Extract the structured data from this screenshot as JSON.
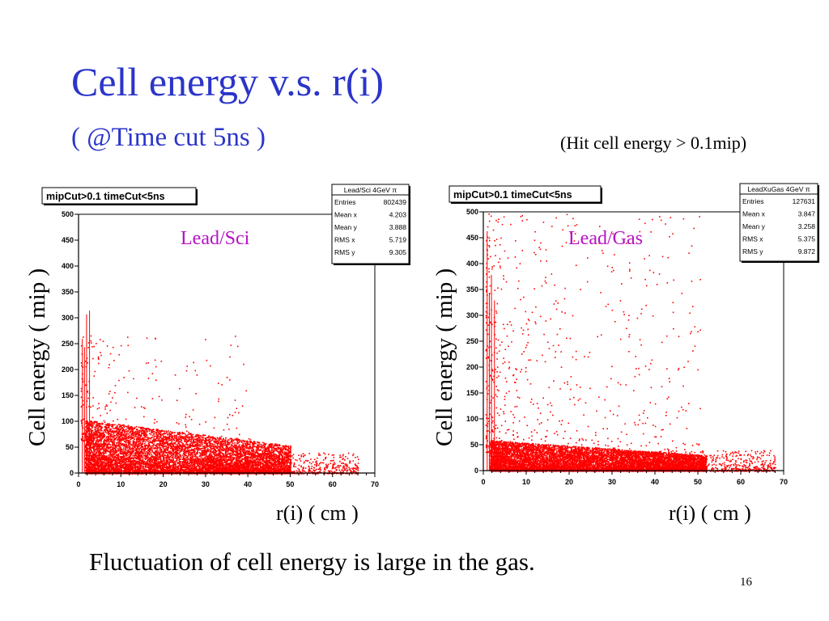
{
  "slide": {
    "title": "Cell energy v.s. r(i)",
    "subtitle": "( @Time cut 5ns )",
    "note": "(Hit cell energy > 0.1mip)",
    "footer": "Fluctuation of cell energy is large in the gas.",
    "page_number": "16"
  },
  "chart_data": [
    {
      "type": "scatter",
      "title": "mipCut>0.1 timeCut<5ns",
      "material_label": "Lead/Sci",
      "xlabel": "r(i)  ( cm )",
      "ylabel": "Cell energy    ( mip )",
      "xlim": [
        0,
        70
      ],
      "ylim": [
        0,
        500
      ],
      "xticks": [
        "0",
        "10",
        "20",
        "30",
        "40",
        "50",
        "60",
        "70"
      ],
      "yticks": [
        "0",
        "50",
        "100",
        "150",
        "200",
        "250",
        "300",
        "350",
        "400",
        "450",
        "500"
      ],
      "marker_color": "#ff0000",
      "stats": {
        "name": "Lead/Sci 4GeV π",
        "rows": [
          [
            "Entries",
            "802439"
          ],
          [
            "Mean x",
            "4.203"
          ],
          [
            "Mean y",
            "3.888"
          ],
          [
            "RMS x",
            "5.719"
          ],
          [
            "RMS y",
            "9.305"
          ]
        ]
      },
      "density": {
        "core_max_y": 105,
        "core_x_end": 50,
        "tail_x_end": 66,
        "sparse_max_y": 270
      }
    },
    {
      "type": "scatter",
      "title": "mipCut>0.1 timeCut<5ns",
      "material_label": "Lead/Gas",
      "xlabel": "r(i)  ( cm )",
      "ylabel": "Cell energy    ( mip )",
      "xlim": [
        0,
        70
      ],
      "ylim": [
        0,
        500
      ],
      "xticks": [
        "0",
        "10",
        "20",
        "30",
        "40",
        "50",
        "60",
        "70"
      ],
      "yticks": [
        "0",
        "50",
        "100",
        "150",
        "200",
        "250",
        "300",
        "350",
        "400",
        "450",
        "500"
      ],
      "marker_color": "#ff0000",
      "stats": {
        "name": "LeadXuGas 4GeV π",
        "rows": [
          [
            "Entries",
            "127631"
          ],
          [
            "Mean x",
            "3.847"
          ],
          [
            "Mean y",
            "3.258"
          ],
          [
            "RMS x",
            "5.375"
          ],
          [
            "RMS y",
            "9.872"
          ]
        ]
      },
      "density": {
        "core_max_y": 60,
        "core_x_end": 52,
        "tail_x_end": 68,
        "sparse_max_y": 500
      }
    }
  ]
}
